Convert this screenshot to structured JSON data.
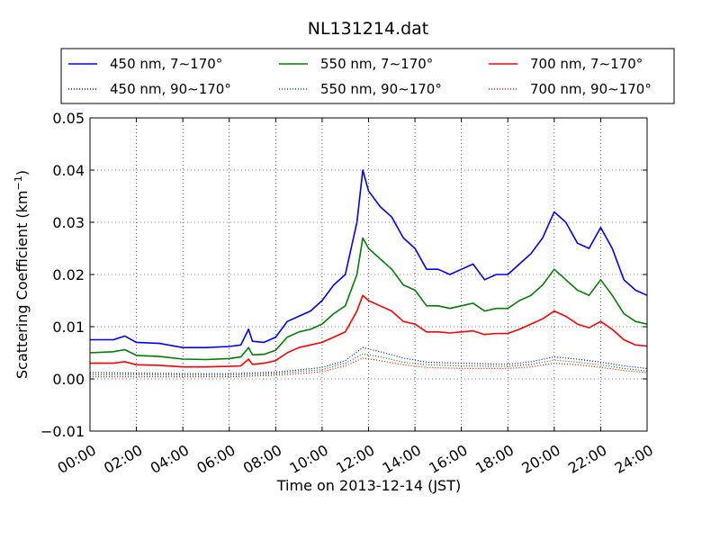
{
  "chart_data": {
    "type": "line",
    "title": "NL131214.dat",
    "xlabel": "Time on 2013-12-14 (JST)",
    "ylabel": "Scattering Coefficient (km",
    "ylabel_superscript": "−1",
    "ylabel_suffix": ")",
    "xlim": [
      "00:00",
      "24:00"
    ],
    "ylim": [
      -0.01,
      0.05
    ],
    "x_ticks": [
      "00:00",
      "02:00",
      "04:00",
      "06:00",
      "08:00",
      "10:00",
      "12:00",
      "14:00",
      "16:00",
      "18:00",
      "20:00",
      "22:00",
      "24:00"
    ],
    "y_ticks": [
      "−0.01",
      "0.00",
      "0.01",
      "0.02",
      "0.03",
      "0.04",
      "0.05"
    ],
    "grid": true,
    "legend_position": "top",
    "colors": {
      "blue": "#0000ff",
      "green": "#008000",
      "red": "#ff0000"
    },
    "series": [
      {
        "name": "450 nm, 7∼170°",
        "color": "#0000ff",
        "style": "solid",
        "x": [
          "00:00",
          "01:00",
          "01:30",
          "02:00",
          "03:00",
          "04:00",
          "05:00",
          "06:00",
          "06:30",
          "06:50",
          "07:00",
          "07:30",
          "08:00",
          "08:30",
          "09:00",
          "09:30",
          "10:00",
          "10:30",
          "11:00",
          "11:30",
          "11:45",
          "12:00",
          "12:30",
          "13:00",
          "13:30",
          "14:00",
          "14:30",
          "15:00",
          "15:30",
          "16:00",
          "16:30",
          "17:00",
          "17:30",
          "18:00",
          "18:30",
          "19:00",
          "19:30",
          "20:00",
          "20:30",
          "21:00",
          "21:30",
          "22:00",
          "22:30",
          "23:00",
          "23:30",
          "24:00"
        ],
        "y": [
          0.0075,
          0.0075,
          0.0082,
          0.007,
          0.0068,
          0.006,
          0.006,
          0.0062,
          0.0065,
          0.0095,
          0.0072,
          0.007,
          0.008,
          0.011,
          0.012,
          0.013,
          0.015,
          0.018,
          0.02,
          0.03,
          0.04,
          0.036,
          0.033,
          0.031,
          0.027,
          0.025,
          0.021,
          0.021,
          0.02,
          0.021,
          0.022,
          0.019,
          0.02,
          0.02,
          0.022,
          0.024,
          0.027,
          0.032,
          0.03,
          0.026,
          0.025,
          0.029,
          0.025,
          0.019,
          0.017,
          0.016
        ]
      },
      {
        "name": "550 nm, 7∼170°",
        "color": "#008000",
        "style": "solid",
        "x": [
          "00:00",
          "01:00",
          "01:30",
          "02:00",
          "03:00",
          "04:00",
          "05:00",
          "06:00",
          "06:30",
          "06:50",
          "07:00",
          "07:30",
          "08:00",
          "08:30",
          "09:00",
          "09:30",
          "10:00",
          "10:30",
          "11:00",
          "11:30",
          "11:45",
          "12:00",
          "12:30",
          "13:00",
          "13:30",
          "14:00",
          "14:30",
          "15:00",
          "15:30",
          "16:00",
          "16:30",
          "17:00",
          "17:30",
          "18:00",
          "18:30",
          "19:00",
          "19:30",
          "20:00",
          "20:30",
          "21:00",
          "21:30",
          "22:00",
          "22:30",
          "23:00",
          "23:30",
          "24:00"
        ],
        "y": [
          0.005,
          0.0052,
          0.0056,
          0.0045,
          0.0043,
          0.0038,
          0.0037,
          0.0039,
          0.0042,
          0.006,
          0.0046,
          0.0047,
          0.0055,
          0.008,
          0.009,
          0.0095,
          0.0105,
          0.0125,
          0.014,
          0.02,
          0.027,
          0.025,
          0.023,
          0.021,
          0.018,
          0.017,
          0.014,
          0.014,
          0.0135,
          0.014,
          0.0145,
          0.013,
          0.0135,
          0.0135,
          0.015,
          0.016,
          0.018,
          0.021,
          0.019,
          0.017,
          0.016,
          0.019,
          0.016,
          0.0125,
          0.011,
          0.0105
        ]
      },
      {
        "name": "700 nm, 7∼170°",
        "color": "#ff0000",
        "style": "solid",
        "x": [
          "00:00",
          "01:00",
          "01:30",
          "02:00",
          "03:00",
          "04:00",
          "05:00",
          "06:00",
          "06:30",
          "06:50",
          "07:00",
          "07:30",
          "08:00",
          "08:30",
          "09:00",
          "09:30",
          "10:00",
          "10:30",
          "11:00",
          "11:30",
          "11:45",
          "12:00",
          "12:30",
          "13:00",
          "13:30",
          "14:00",
          "14:30",
          "15:00",
          "15:30",
          "16:00",
          "16:30",
          "17:00",
          "17:30",
          "18:00",
          "18:30",
          "19:00",
          "19:30",
          "20:00",
          "20:30",
          "21:00",
          "21:30",
          "22:00",
          "22:30",
          "23:00",
          "23:30",
          "24:00"
        ],
        "y": [
          0.003,
          0.003,
          0.0033,
          0.0027,
          0.0026,
          0.0023,
          0.0023,
          0.0024,
          0.0025,
          0.0038,
          0.0028,
          0.003,
          0.0035,
          0.005,
          0.006,
          0.0065,
          0.007,
          0.008,
          0.009,
          0.013,
          0.016,
          0.015,
          0.014,
          0.013,
          0.011,
          0.0105,
          0.009,
          0.009,
          0.0088,
          0.009,
          0.0092,
          0.0085,
          0.0087,
          0.0087,
          0.0095,
          0.0105,
          0.0115,
          0.013,
          0.012,
          0.0105,
          0.0098,
          0.011,
          0.0095,
          0.0075,
          0.0065,
          0.0063
        ]
      },
      {
        "name": "450 nm, 90∼170°",
        "color": "#0000ff",
        "style": "dotted",
        "x": [
          "00:00",
          "02:00",
          "04:00",
          "06:00",
          "08:00",
          "09:00",
          "10:00",
          "11:00",
          "11:45",
          "12:30",
          "13:30",
          "14:30",
          "16:00",
          "18:00",
          "19:00",
          "20:00",
          "21:00",
          "22:00",
          "23:00",
          "24:00"
        ],
        "y": [
          0.0012,
          0.0011,
          0.001,
          0.001,
          0.0013,
          0.0017,
          0.0022,
          0.0035,
          0.006,
          0.0052,
          0.004,
          0.0032,
          0.003,
          0.0028,
          0.0033,
          0.0042,
          0.0038,
          0.0032,
          0.0025,
          0.002
        ]
      },
      {
        "name": "550 nm, 90∼170°",
        "color": "#008000",
        "style": "dotted",
        "x": [
          "00:00",
          "02:00",
          "04:00",
          "06:00",
          "08:00",
          "09:00",
          "10:00",
          "11:00",
          "11:45",
          "12:30",
          "13:30",
          "14:30",
          "16:00",
          "18:00",
          "19:00",
          "20:00",
          "21:00",
          "22:00",
          "23:00",
          "24:00"
        ],
        "y": [
          0.0008,
          0.0008,
          0.0007,
          0.0007,
          0.001,
          0.0014,
          0.0018,
          0.003,
          0.0048,
          0.0042,
          0.0032,
          0.0027,
          0.0025,
          0.0024,
          0.0028,
          0.0036,
          0.0032,
          0.0027,
          0.002,
          0.0015
        ]
      },
      {
        "name": "700 nm, 90∼170°",
        "color": "#ff0000",
        "style": "dotted",
        "x": [
          "00:00",
          "02:00",
          "04:00",
          "06:00",
          "08:00",
          "09:00",
          "10:00",
          "11:00",
          "11:45",
          "12:30",
          "13:30",
          "14:30",
          "16:00",
          "18:00",
          "19:00",
          "20:00",
          "21:00",
          "22:00",
          "23:00",
          "24:00"
        ],
        "y": [
          0.0004,
          0.0004,
          0.0004,
          0.0004,
          0.0007,
          0.001,
          0.0014,
          0.0025,
          0.004,
          0.0035,
          0.0027,
          0.0022,
          0.002,
          0.002,
          0.0023,
          0.003,
          0.0027,
          0.0022,
          0.0016,
          0.0012
        ]
      }
    ]
  }
}
